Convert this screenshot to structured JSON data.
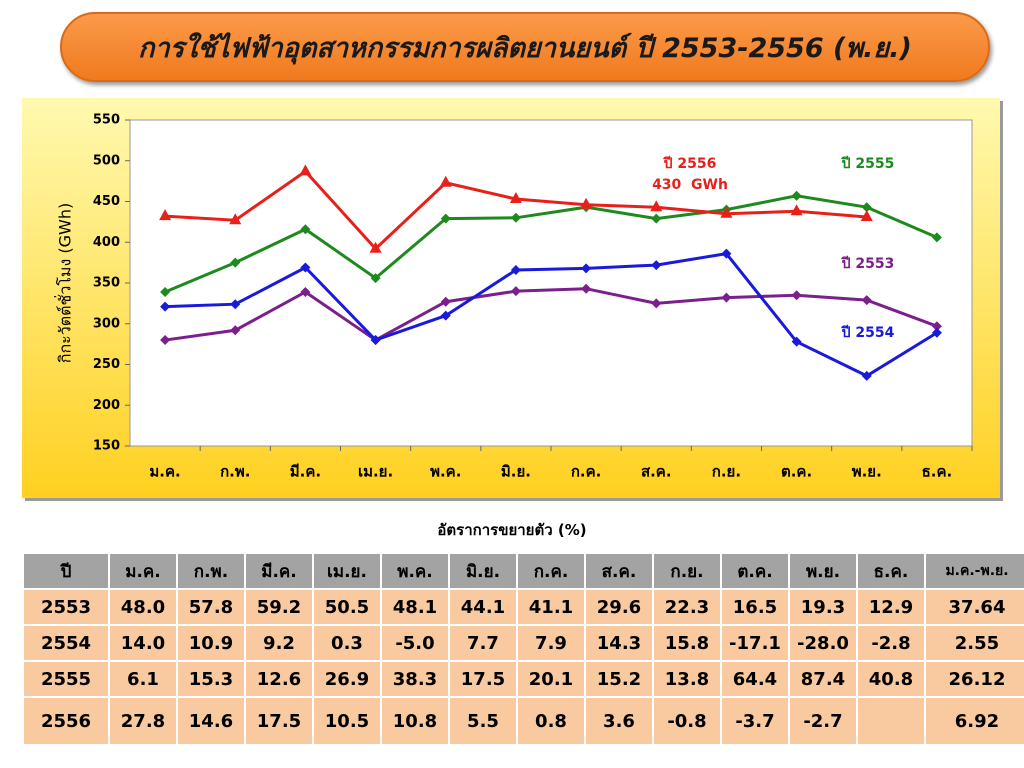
{
  "title": "การใช้ไฟฟ้าอุตสาหกรรมการผลิตยานยนต์ ปี 2553-2556 (พ.ย.)",
  "chart_data": {
    "type": "line",
    "y_label": "กิกะวัตต์ชั่วโมง (GWh)",
    "categories": [
      "ม.ค.",
      "ก.พ.",
      "มี.ค.",
      "เม.ย.",
      "พ.ค.",
      "มิ.ย.",
      "ก.ค.",
      "ส.ค.",
      "ก.ย.",
      "ต.ค.",
      "พ.ย.",
      "ธ.ค."
    ],
    "ylim": [
      150,
      550
    ],
    "yticks": [
      150,
      200,
      250,
      300,
      350,
      400,
      450,
      500,
      550
    ],
    "annotation": "430  GWh",
    "series": [
      {
        "name": "ปี 2553",
        "color": "#7b1f8c",
        "marker": "diamond",
        "values": [
          280,
          292,
          339,
          280,
          327,
          340,
          343,
          325,
          332,
          335,
          329,
          297
        ]
      },
      {
        "name": "ปี 2554",
        "color": "#1a1adb",
        "marker": "diamond",
        "values": [
          321,
          324,
          369,
          280,
          310,
          366,
          368,
          372,
          386,
          278,
          236,
          289
        ]
      },
      {
        "name": "ปี 2555",
        "color": "#1e8a1e",
        "marker": "diamond",
        "values": [
          339,
          375,
          416,
          356,
          429,
          430,
          443,
          429,
          440,
          457,
          443,
          406
        ]
      },
      {
        "name": "ปี 2556",
        "color": "#e8201a",
        "marker": "triangle",
        "values": [
          432,
          427,
          487,
          392,
          473,
          453,
          446,
          443,
          435,
          438,
          431,
          null
        ]
      }
    ]
  },
  "table": {
    "caption": "อัตราการขยายตัว (%)",
    "header": [
      "ปี",
      "ม.ค.",
      "ก.พ.",
      "มี.ค.",
      "เม.ย.",
      "พ.ค.",
      "มิ.ย.",
      "ก.ค.",
      "ส.ค.",
      "ก.ย.",
      "ต.ค.",
      "พ.ย.",
      "ธ.ค.",
      "ม.ค.-พ.ย."
    ],
    "rows": [
      [
        "2553",
        "48.0",
        "57.8",
        "59.2",
        "50.5",
        "48.1",
        "44.1",
        "41.1",
        "29.6",
        "22.3",
        "16.5",
        "19.3",
        "12.9",
        "37.64"
      ],
      [
        "2554",
        "14.0",
        "10.9",
        "9.2",
        "0.3",
        "-5.0",
        "7.7",
        "7.9",
        "14.3",
        "15.8",
        "-17.1",
        "-28.0",
        "-2.8",
        "2.55"
      ],
      [
        "2555",
        "6.1",
        "15.3",
        "12.6",
        "26.9",
        "38.3",
        "17.5",
        "20.1",
        "15.2",
        "13.8",
        "64.4",
        "87.4",
        "40.8",
        "26.12"
      ],
      [
        "2556",
        "27.8",
        "14.6",
        "17.5",
        "10.5",
        "10.8",
        "5.5",
        "0.8",
        "3.6",
        "-0.8",
        "-3.7",
        "-2.7",
        null,
        "6.92"
      ]
    ]
  }
}
